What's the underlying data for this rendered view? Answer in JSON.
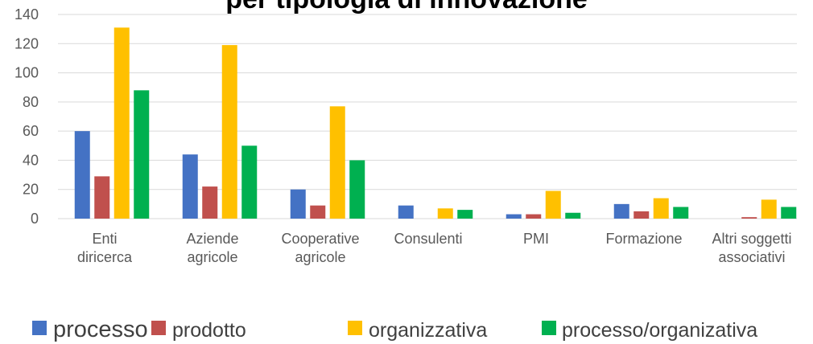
{
  "chart_data": {
    "type": "bar",
    "title": "per tipologia di innovazione",
    "categories": [
      "Enti\ndiricerca",
      "Aziende\nagricole",
      "Cooperative\nagricole",
      "Consulenti",
      "PMI",
      "Formazione",
      "Altri soggetti\nassociativi"
    ],
    "series": [
      {
        "name": "processo",
        "color": "#4472c4",
        "values": [
          60,
          44,
          20,
          9,
          3,
          10,
          0
        ]
      },
      {
        "name": "prodotto",
        "color": "#c0504d",
        "values": [
          29,
          22,
          9,
          0,
          3,
          5,
          1
        ]
      },
      {
        "name": "organizzativa",
        "color": "#ffc000",
        "values": [
          131,
          119,
          77,
          7,
          19,
          14,
          13
        ]
      },
      {
        "name": "processo/organizativa",
        "color": "#00b050",
        "values": [
          88,
          50,
          40,
          6,
          4,
          8,
          8
        ]
      }
    ],
    "ylim": [
      0,
      140
    ],
    "yticks": [
      0,
      20,
      40,
      60,
      80,
      100,
      120,
      140
    ],
    "grid": true,
    "legend": "bottom"
  }
}
